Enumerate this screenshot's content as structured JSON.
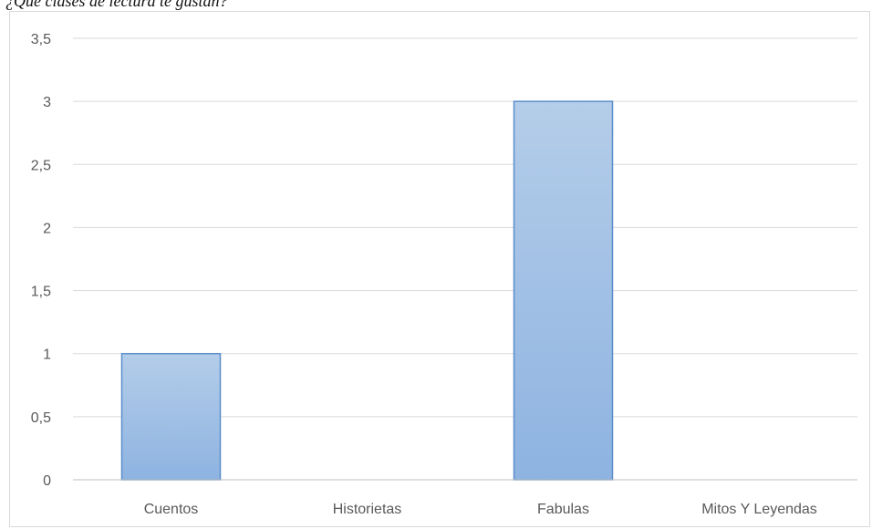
{
  "heading": "¿Qué clases de lectura te gustan?",
  "chart_data": {
    "type": "bar",
    "title": "",
    "xlabel": "",
    "ylabel": "",
    "categories": [
      "Cuentos",
      "Historietas",
      "Fabulas",
      "Mitos Y Leyendas"
    ],
    "values": [
      1,
      0,
      3,
      0
    ],
    "ylim": [
      0,
      3.5
    ],
    "yticks": [
      "0",
      "0,5",
      "1",
      "1,5",
      "2",
      "2,5",
      "3",
      "3,5"
    ],
    "grid": true,
    "legend": "none",
    "colors": {
      "bar_top": "#b4cde9",
      "bar_bottom": "#8eb3e1",
      "bar_border": "#5b8ec9",
      "grid": "#d9d9d9",
      "axis": "#bfbfbf",
      "label": "#595959"
    }
  }
}
